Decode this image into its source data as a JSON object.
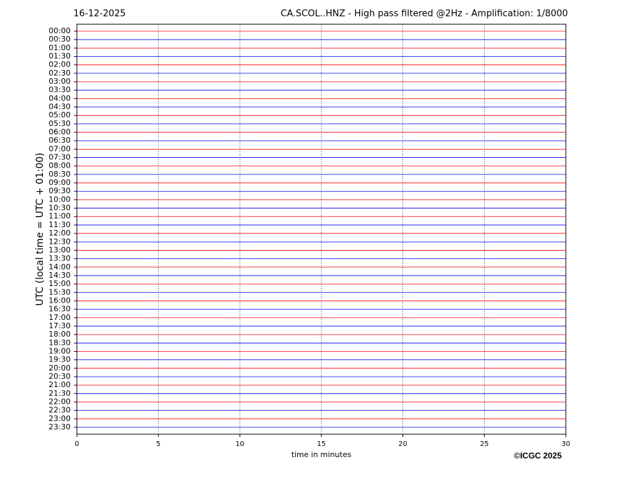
{
  "chart_data": {
    "type": "helicorder",
    "date": "16-12-2025",
    "title": "CA.SCOL..HNZ - High pass filtered @2Hz - Amplification: 1/8000",
    "ylabel": "UTC (local time = UTC + 01:00)",
    "xlabel": "time in minutes",
    "copyright": "©ICGC 2025",
    "categories": [
      "00:00",
      "00:30",
      "01:00",
      "01:30",
      "02:00",
      "02:30",
      "03:00",
      "03:30",
      "04:00",
      "04:30",
      "05:00",
      "05:30",
      "06:00",
      "06:30",
      "07:00",
      "07:30",
      "08:00",
      "08:30",
      "09:00",
      "09:30",
      "10:00",
      "10:30",
      "11:00",
      "11:30",
      "12:00",
      "12:30",
      "13:00",
      "13:30",
      "14:00",
      "14:30",
      "15:00",
      "15:30",
      "16:00",
      "16:30",
      "17:00",
      "17:30",
      "18:00",
      "18:30",
      "19:00",
      "19:30",
      "20:00",
      "20:30",
      "21:00",
      "21:30",
      "22:00",
      "22:30",
      "23:00",
      "23:30"
    ],
    "colors": [
      "#ff0000",
      "#0000ff"
    ],
    "xlim": [
      0,
      30
    ],
    "xticks": [
      0,
      5,
      10,
      15,
      20,
      25,
      30
    ],
    "grid": true
  }
}
